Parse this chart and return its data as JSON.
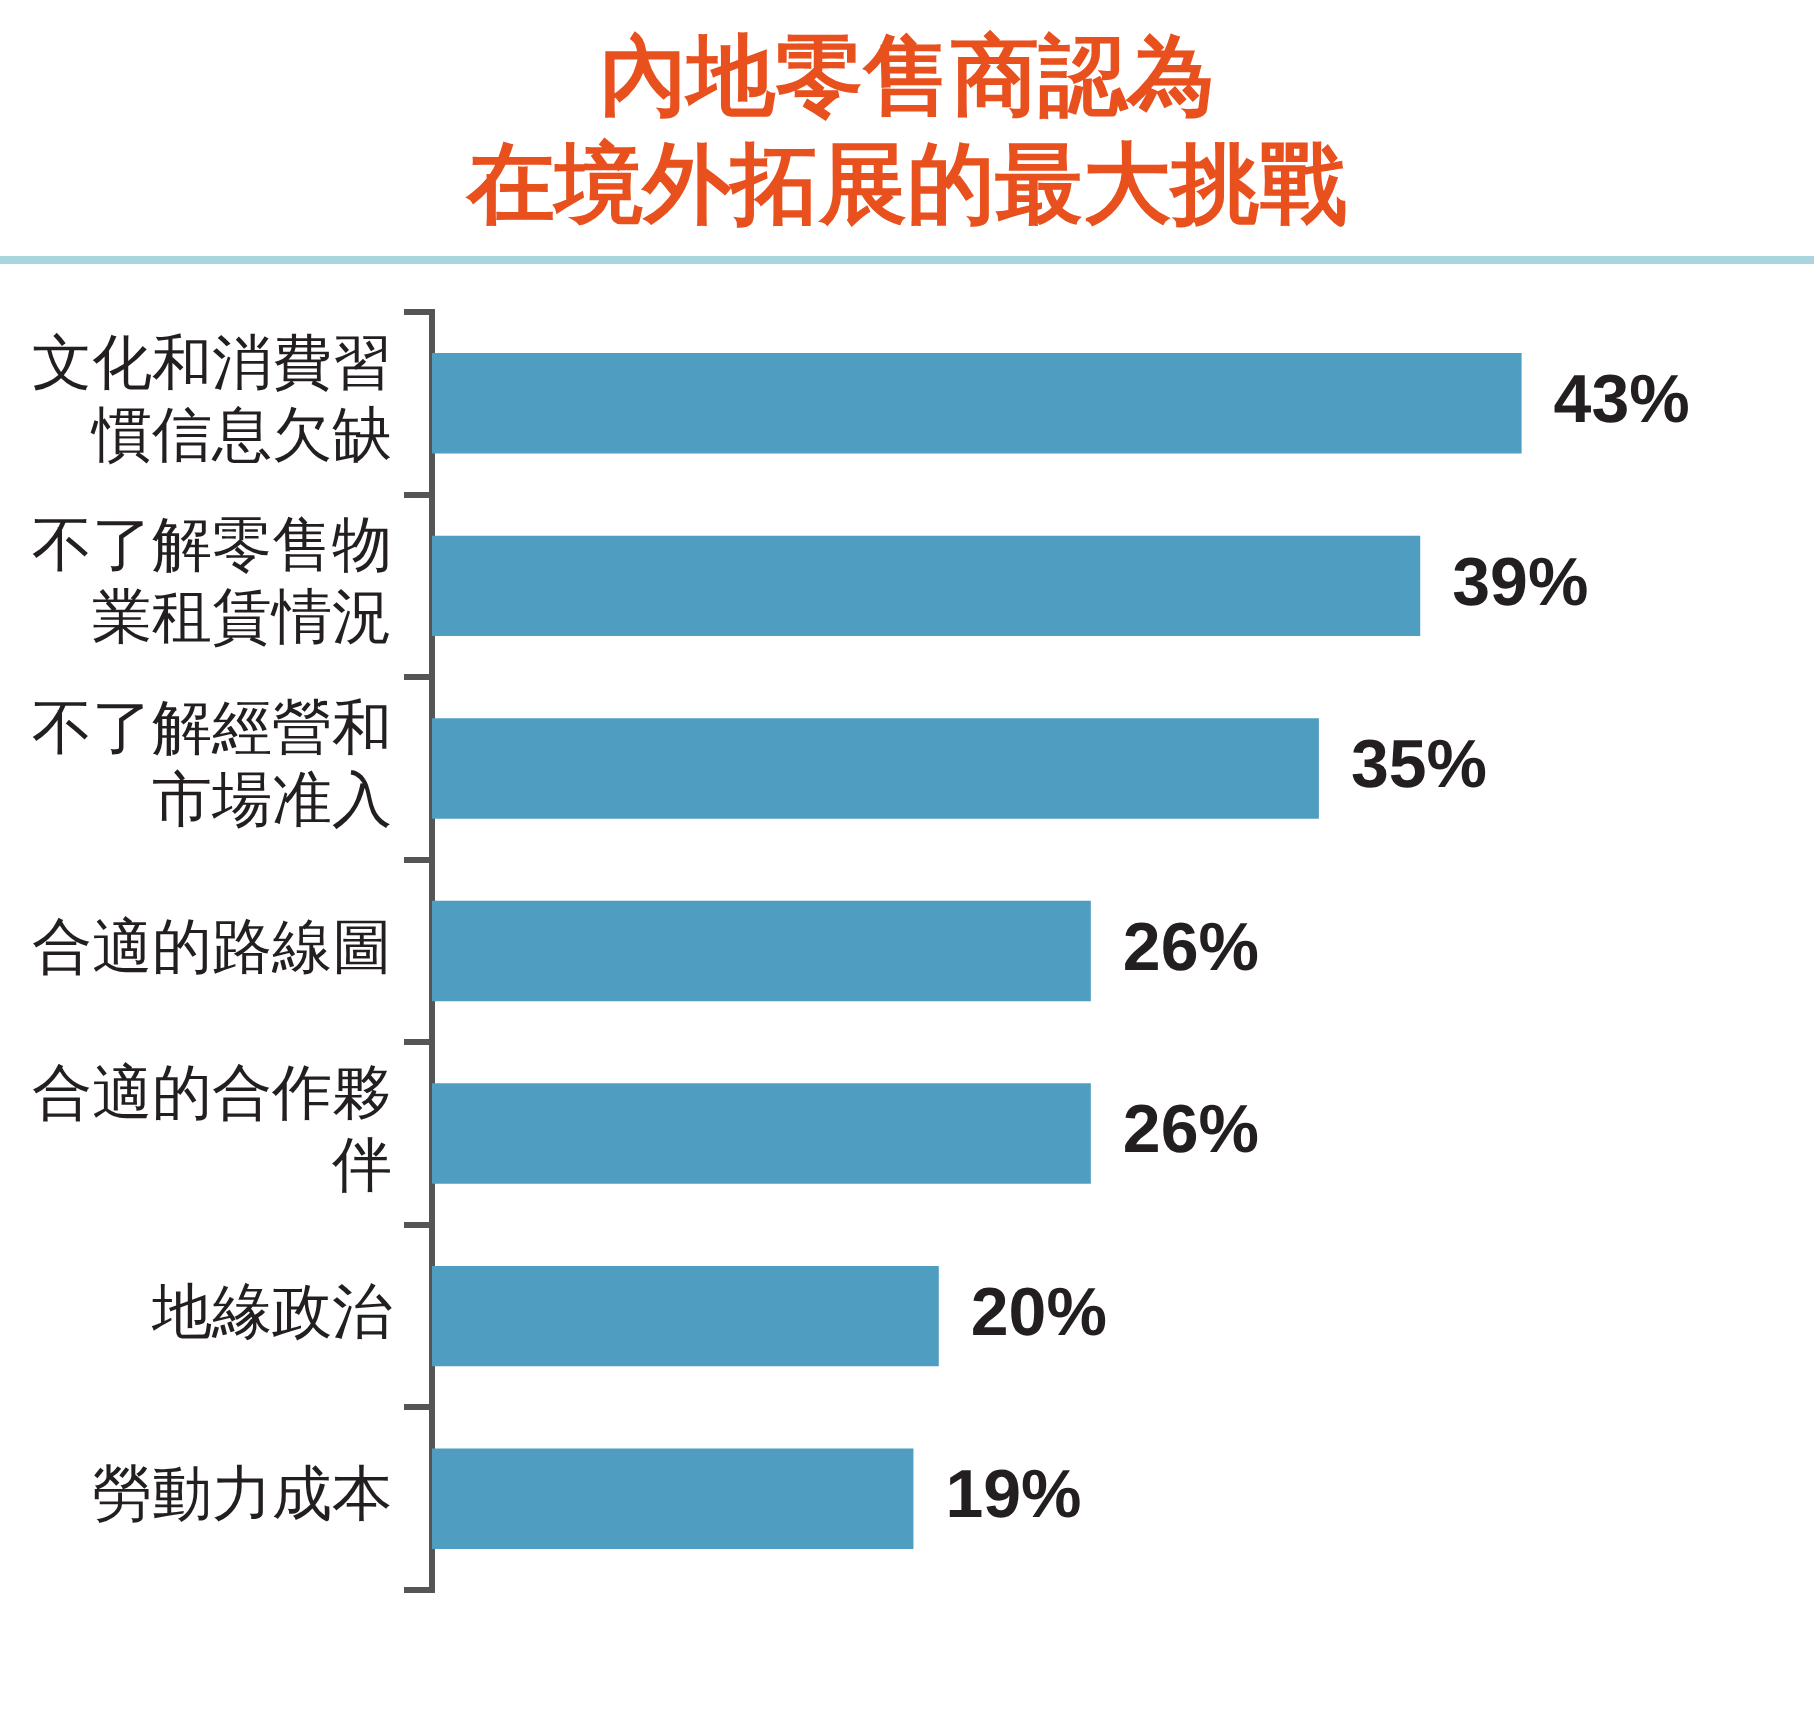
{
  "chart_data": {
    "type": "bar",
    "orientation": "horizontal",
    "title": "內地零售商認為在境外拓展的最大挑戰",
    "categories": [
      "文化和消費習慣信息欠缺",
      "不了解零售物業租賃情況",
      "不了解經營和市場准入",
      "合適的路線圖",
      "合適的合作夥伴",
      "地緣政治",
      "勞動力成本"
    ],
    "values": [
      43,
      39,
      35,
      26,
      26,
      20,
      19
    ],
    "value_labels": [
      "43%",
      "39%",
      "35%",
      "26%",
      "26%",
      "20%",
      "19%"
    ],
    "color": "#4f9dc0",
    "tick_labels": "y"
  }
}
